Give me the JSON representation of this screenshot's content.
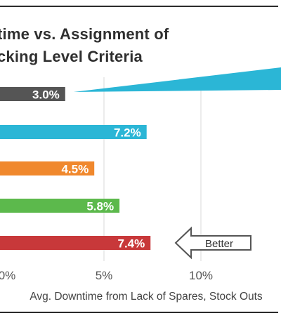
{
  "chart_data": {
    "type": "bar",
    "orientation": "horizontal",
    "title_lines": [
      "time vs. Assignment of",
      "cking Level Criteria"
    ],
    "bars": [
      {
        "value": 3.0,
        "label": "3.0%",
        "color": "#555555"
      },
      {
        "value": 7.2,
        "label": "7.2%",
        "color": "#2bb6d6"
      },
      {
        "value": 4.5,
        "label": "4.5%",
        "color": "#f0882d"
      },
      {
        "value": 5.8,
        "label": "5.8%",
        "color": "#5cb94c"
      },
      {
        "value": 7.4,
        "label": "7.4%",
        "color": "#c8383a"
      }
    ],
    "x_ticks": [
      {
        "value": 0,
        "label": "0%"
      },
      {
        "value": 5,
        "label": "5%"
      },
      {
        "value": 10,
        "label": "10%"
      }
    ],
    "xlabel": "Avg. Downtime from Lack of Spares, Stock Outs",
    "xlim": [
      0,
      15
    ],
    "grid": true,
    "annotation": {
      "text": "Better",
      "direction": "left"
    },
    "callout_color": "#2bb6d6"
  }
}
